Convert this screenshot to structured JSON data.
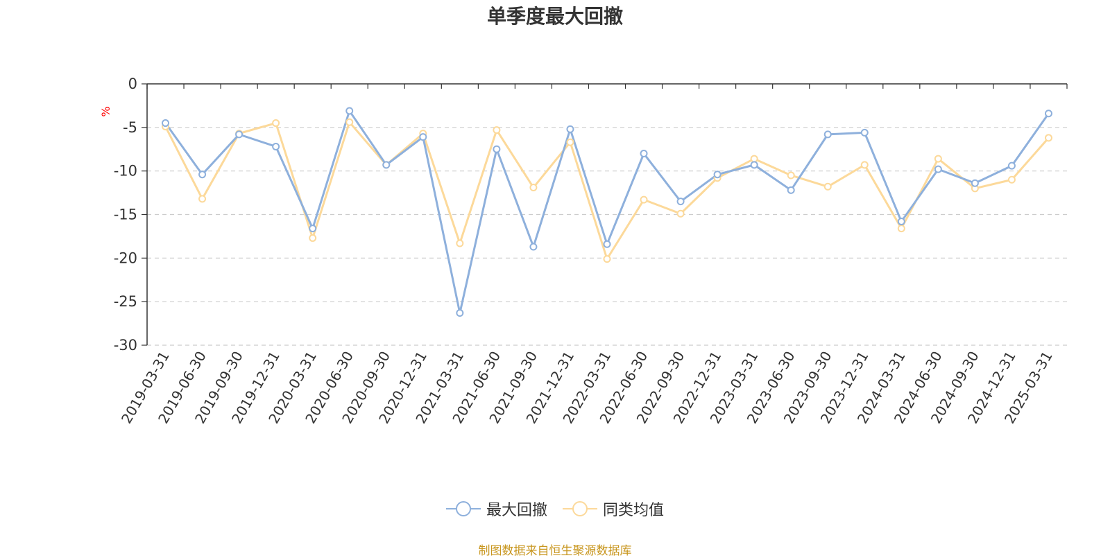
{
  "chart_data": {
    "type": "line",
    "title": "单季度最大回撤",
    "ylabel": "%",
    "xlabel": "",
    "ylim": [
      -30,
      0
    ],
    "yticks": [
      0,
      -5,
      -10,
      -15,
      -20,
      -25,
      -30
    ],
    "grid": true,
    "legend_position": "bottom-center",
    "categories": [
      "2019-03-31",
      "2019-06-30",
      "2019-09-30",
      "2019-12-31",
      "2020-03-31",
      "2020-06-30",
      "2020-09-30",
      "2020-12-31",
      "2021-03-31",
      "2021-06-30",
      "2021-09-30",
      "2021-12-31",
      "2022-03-31",
      "2022-06-30",
      "2022-09-30",
      "2022-12-31",
      "2023-03-31",
      "2023-06-30",
      "2023-09-30",
      "2023-12-31",
      "2024-03-31",
      "2024-06-30",
      "2024-09-30",
      "2024-12-31",
      "2025-03-31"
    ],
    "series": [
      {
        "name": "最大回撤",
        "color": "#8eb0dc",
        "values": [
          -4.5,
          -10.4,
          -5.8,
          -7.2,
          -16.6,
          -3.1,
          -9.3,
          -6.1,
          -26.3,
          -7.5,
          -18.7,
          -5.2,
          -18.4,
          -8.0,
          -13.5,
          -10.4,
          -9.3,
          -12.2,
          -5.8,
          -5.6,
          -15.8,
          -9.8,
          -11.4,
          -9.4,
          -3.4
        ]
      },
      {
        "name": "同类均值",
        "color": "#fcd99a",
        "values": [
          -4.9,
          -13.2,
          -5.7,
          -4.5,
          -17.7,
          -4.4,
          -9.3,
          -5.7,
          -18.3,
          -5.3,
          -11.9,
          -6.7,
          -20.1,
          -13.3,
          -14.9,
          -10.8,
          -8.6,
          -10.5,
          -11.8,
          -9.3,
          -16.6,
          -8.6,
          -12.0,
          -11.0,
          -6.2
        ]
      }
    ]
  },
  "source_text": "制图数据来自恒生聚源数据库",
  "colors": {
    "axis": "#333333",
    "grid": "#cccccc",
    "ylabel": "#ff0000",
    "source": "#c8961e"
  }
}
